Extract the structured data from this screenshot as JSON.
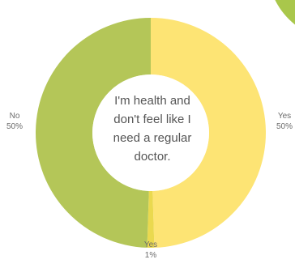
{
  "chart_data": {
    "type": "pie",
    "donut": true,
    "center_text": "I'm health and\ndon't feel like  I\nneed a regular\ndoctor.",
    "slices": [
      {
        "label": "Yes",
        "percent_label": "50%",
        "value": 49.5,
        "color": "#FDE474"
      },
      {
        "label": "Yes",
        "percent_label": "1%",
        "value": 1,
        "color": "#EAD94F"
      },
      {
        "label": "No",
        "percent_label": "50%",
        "value": 49.5,
        "color": "#B4C658"
      }
    ],
    "legend": "none"
  },
  "decor": {
    "corner_circle_color": "#A9C74B"
  }
}
